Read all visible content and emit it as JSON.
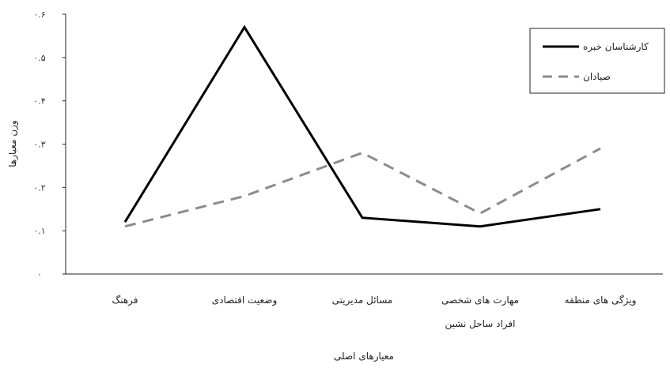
{
  "chart_data": {
    "type": "line",
    "xlabel": "معیارهای اصلی",
    "ylabel": "وزن معیارها",
    "ylim": [
      0,
      0.6
    ],
    "yticks": [
      {
        "value": 0,
        "label": "۰"
      },
      {
        "value": 0.1,
        "label": "۰.۱"
      },
      {
        "value": 0.2,
        "label": "۰.۲"
      },
      {
        "value": 0.3,
        "label": "۰.۳"
      },
      {
        "value": 0.4,
        "label": "۰.۴"
      },
      {
        "value": 0.5,
        "label": "۰.۵"
      },
      {
        "value": 0.6,
        "label": "۰.۶"
      }
    ],
    "categories": [
      [
        "فرهنگ"
      ],
      [
        "وضعیت اقتصادی"
      ],
      [
        "مسائل مدیریتی"
      ],
      [
        "مهارت های شخصی",
        "افراد ساحل نشین"
      ],
      [
        "ویژگی های منطقه"
      ]
    ],
    "series": [
      {
        "name": "کارشناسان خبره",
        "style": "solid",
        "color": "#000000",
        "values": [
          0.12,
          0.57,
          0.13,
          0.11,
          0.15
        ]
      },
      {
        "name": "صیادان",
        "style": "dashed",
        "color": "#8c8c8c",
        "values": [
          0.11,
          0.18,
          0.28,
          0.14,
          0.29
        ]
      }
    ],
    "legend_position": "top-right",
    "grid": false
  }
}
